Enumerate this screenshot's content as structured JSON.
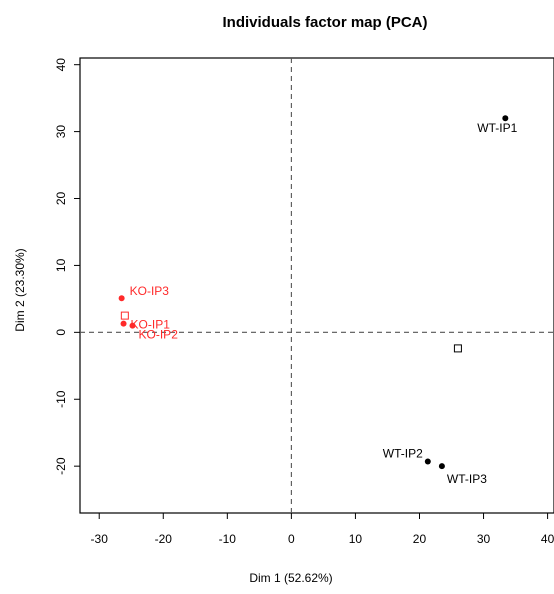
{
  "chart_data": {
    "type": "scatter",
    "title": "Individuals factor map (PCA)",
    "xlabel": "Dim 1 (52.62%)",
    "ylabel": "Dim 2 (23.30%)",
    "xlim": [
      -33,
      41
    ],
    "ylim": [
      -27,
      41
    ],
    "xticks": [
      -30,
      -20,
      -10,
      0,
      10,
      20,
      30,
      40
    ],
    "yticks": [
      -20,
      -10,
      0,
      10,
      20,
      30,
      40
    ],
    "grid": false,
    "reference_lines": {
      "x": 0,
      "y": 0,
      "style": "dashed"
    },
    "colors": {
      "KO": "#ff2a2a",
      "WT": "#000000",
      "axis": "#000000"
    },
    "series": [
      {
        "color": "#ff2a2a",
        "marker": "filled-circle",
        "points": [
          {
            "label": "KO-IP3",
            "x": -26.5,
            "y": 5.1
          },
          {
            "label": "KO-IP1",
            "x": -26.2,
            "y": 1.3
          },
          {
            "label": "KO-IP2",
            "x": -24.8,
            "y": 1.0
          }
        ]
      },
      {
        "color": "#000000",
        "marker": "filled-circle",
        "points": [
          {
            "label": "WT-IP1",
            "x": 33.4,
            "y": 32.0
          },
          {
            "label": "WT-IP2",
            "x": 21.3,
            "y": -19.3
          },
          {
            "label": "WT-IP3",
            "x": 23.5,
            "y": -20.0
          }
        ]
      }
    ],
    "group_centroids": [
      {
        "x": -26.0,
        "y": 2.5,
        "color": "#ff2a2a",
        "marker": "open-square"
      },
      {
        "x": 26.0,
        "y": -2.4,
        "color": "#000000",
        "marker": "open-square"
      }
    ]
  }
}
